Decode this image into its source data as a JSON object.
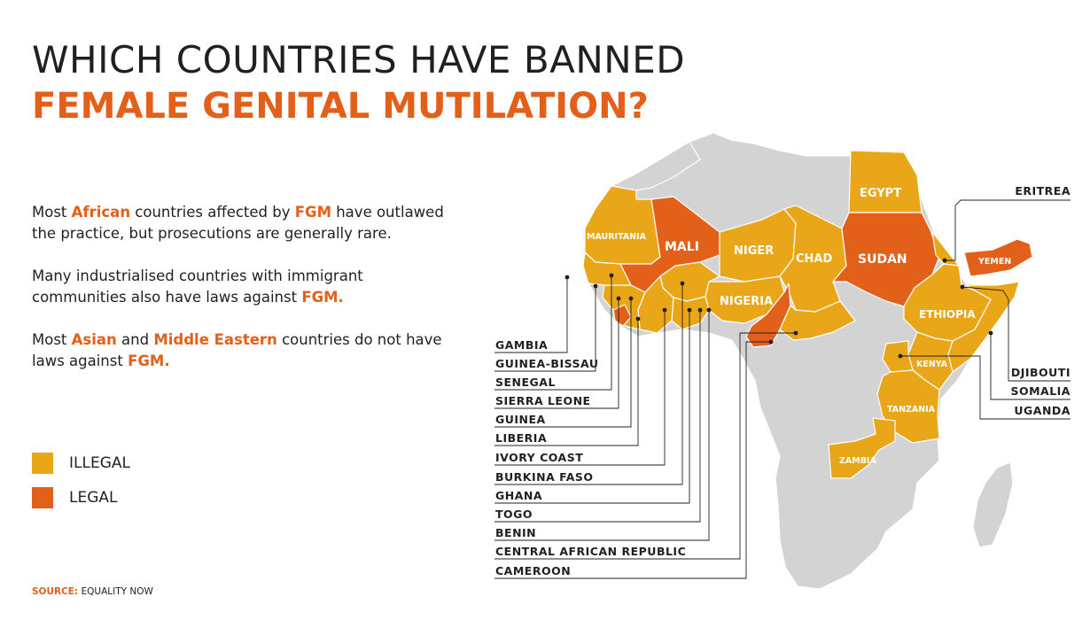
{
  "title": {
    "line1": "WHICH COUNTRIES HAVE BANNED",
    "line2": "FEMALE GENITAL MUTILATION?"
  },
  "paragraphs": [
    {
      "parts": [
        {
          "t": "Most ",
          "b": false
        },
        {
          "t": "African",
          "b": true
        },
        {
          "t": " countries affected by ",
          "b": false
        },
        {
          "t": "FGM",
          "b": true
        },
        {
          "t": " have outlawed the practice, but prosecutions are generally rare.",
          "b": false
        }
      ]
    },
    {
      "parts": [
        {
          "t": "Many industrialised countries with immigrant communities also have laws against ",
          "b": false
        },
        {
          "t": "FGM.",
          "b": true
        }
      ]
    },
    {
      "parts": [
        {
          "t": "Most ",
          "b": false
        },
        {
          "t": "Asian",
          "b": true
        },
        {
          "t": " and ",
          "b": false
        },
        {
          "t": "Middle Eastern",
          "b": true
        },
        {
          "t": " countries do not have laws against ",
          "b": false
        },
        {
          "t": "FGM.",
          "b": true
        }
      ]
    }
  ],
  "legend": {
    "illegal": {
      "label": "ILLEGAL",
      "color": "#eaa619"
    },
    "legal": {
      "label": "LEGAL",
      "color": "#e2601a"
    }
  },
  "source": {
    "label": "SOURCE:",
    "value": "EQUALITY NOW"
  },
  "colors": {
    "illegal": "#eaa619",
    "legal": "#e2601a",
    "no_data": "#d3d3d4",
    "border": "#ffffff"
  },
  "map_labels": {
    "mauritania": "MAURITANIA",
    "mali": "MALI",
    "niger": "NIGER",
    "chad": "CHAD",
    "sudan": "SUDAN",
    "egypt": "EGYPT",
    "nigeria": "NIGERIA",
    "ethiopia": "ETHIOPIA",
    "kenya": "KENYA",
    "tanzania": "TANZANIA",
    "zambia": "ZAMBIA",
    "yemen": "YEMEN"
  },
  "callouts_left": [
    "GAMBIA",
    "GUINEA-BISSAU",
    "SENEGAL",
    "SIERRA LEONE",
    "GUINEA",
    "LIBERIA",
    "IVORY COAST",
    "BURKINA FASO",
    "GHANA",
    "TOGO",
    "BENIN",
    "CENTRAL AFRICAN REPUBLIC",
    "CAMEROON"
  ],
  "callouts_right": [
    "ERITREA",
    "DJIBOUTI",
    "SOMALIA",
    "UGANDA"
  ]
}
